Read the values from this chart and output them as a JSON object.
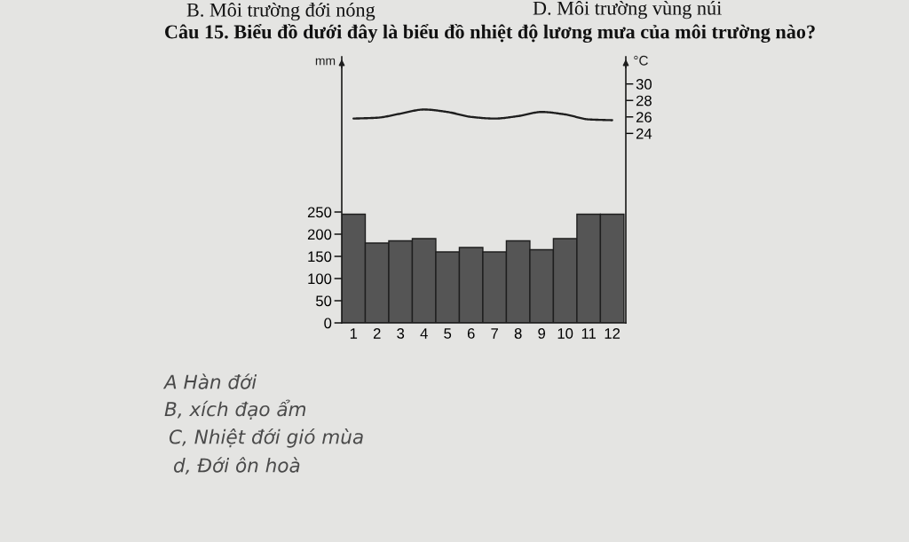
{
  "chart_data": {
    "type": "bar",
    "title": "Câu 15. Biểu đồ dưới đây là biểu đồ nhiệt độ lương mưa của môi trường nào?",
    "ylabel": "mm",
    "y2label": "°C",
    "categories": [
      "1",
      "2",
      "3",
      "4",
      "5",
      "6",
      "7",
      "8",
      "9",
      "10",
      "11",
      "12"
    ],
    "series": [
      {
        "color": "#555555",
        "values": [
          245,
          180,
          185,
          190,
          160,
          170,
          160,
          185,
          165,
          190,
          245,
          245
        ]
      },
      {
        "type": "line",
        "axis": "y2",
        "color": "#1e1e1e",
        "values": [
          25.8,
          25.9,
          26.4,
          26.9,
          26.6,
          26.0,
          25.8,
          26.1,
          26.6,
          26.3,
          25.7,
          25.6
        ]
      }
    ],
    "ylim": [
      0,
      600
    ],
    "yticks": [
      0,
      50,
      100,
      150,
      200,
      250
    ],
    "y2lim": [
      1,
      33.3
    ],
    "y2ticks": [
      24,
      26,
      28,
      30
    ],
    "grid": false,
    "line_style": "solid",
    "annotations": [
      "B. Môi trường đới nóng",
      "D. Môi trường vùng núi",
      "A Hàn đới",
      "B, xích đạo ẩm",
      "C, Nhiệt đới gió mùa",
      "d, Đới ôn hoà"
    ]
  }
}
